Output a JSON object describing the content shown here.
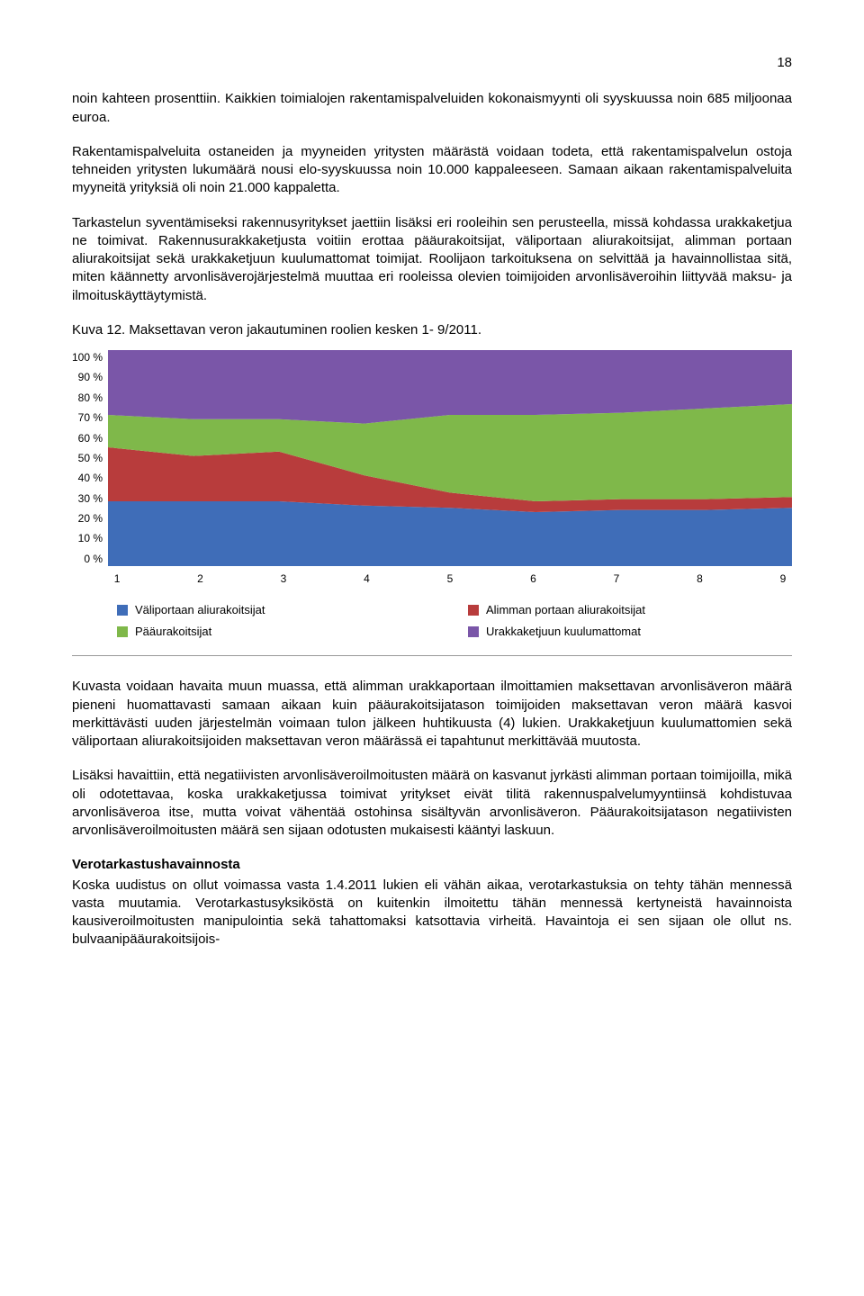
{
  "page_number": "18",
  "para1": "noin kahteen prosenttiin. Kaikkien toimialojen rakentamispalveluiden kokonaismyynti oli syyskuussa noin 685 miljoonaa euroa.",
  "para2": "Rakentamispalveluita ostaneiden ja myyneiden yritysten määrästä voidaan todeta, että rakentamispalvelun ostoja tehneiden yritysten lukumäärä nousi elo-syyskuussa noin 10.000 kappaleeseen. Samaan aikaan rakentamispalveluita myyneitä yrityksiä oli noin 21.000 kappaletta.",
  "para3": "Tarkastelun syventämiseksi rakennusyritykset jaettiin lisäksi eri rooleihin sen perusteella, missä kohdassa urakkaketjua ne toimivat. Rakennusurakkaketjusta voitiin erottaa pääurakoitsijat, väliportaan aliurakoitsijat, alimman portaan aliurakoitsijat sekä urakkaketjuun kuulumattomat toimijat. Roolijaon tarkoituksena on selvittää ja havainnollistaa sitä, miten käännetty arvonlisäverojärjestelmä muuttaa eri rooleissa olevien toimijoiden arvonlisäveroihin liittyvää maksu- ja ilmoituskäyttäytymistä.",
  "caption": "Kuva 12. Maksettavan veron jakautuminen roolien kesken 1- 9/2011.",
  "chart": {
    "type": "area-stacked",
    "ylim": [
      0,
      100
    ],
    "ytick_step": 10,
    "y_unit": "%",
    "x_labels": [
      "1",
      "2",
      "3",
      "4",
      "5",
      "6",
      "7",
      "8",
      "9"
    ],
    "series": [
      {
        "name": "Väliportaan aliurakoitsijat",
        "color": "#3f6db8",
        "values": [
          30,
          30,
          30,
          28,
          27,
          25,
          26,
          26,
          27
        ]
      },
      {
        "name": "Alimman portaan aliurakoitsijat",
        "color": "#b83c3c",
        "values": [
          25,
          21,
          23,
          14,
          7,
          5,
          5,
          5,
          5
        ]
      },
      {
        "name": "Pääurakoitsijat",
        "color": "#7fb84a",
        "values": [
          15,
          17,
          15,
          24,
          36,
          40,
          40,
          42,
          43
        ]
      },
      {
        "name": "Urakkaketjuun kuulumattomat",
        "color": "#7a56a8",
        "values": [
          30,
          32,
          32,
          34,
          30,
          30,
          29,
          27,
          25
        ]
      }
    ],
    "background_color": "#ffffff",
    "axis_font_size": 12
  },
  "para4": "Kuvasta voidaan havaita muun muassa, että alimman urakkaportaan ilmoittamien maksettavan arvonlisäveron määrä pieneni huomattavasti samaan aikaan kuin pääurakoitsijatason toimijoiden maksettavan veron määrä kasvoi merkittävästi uuden järjestelmän voimaan tulon jälkeen huhtikuusta (4) lukien. Urakkaketjuun kuulumattomien sekä väliportaan aliurakoitsijoiden maksettavan veron määrässä ei tapahtunut merkittävää muutosta.",
  "para5": "Lisäksi havaittiin, että negatiivisten arvonlisäveroilmoitusten määrä on kasvanut jyrkästi alimman portaan toimijoilla, mikä oli odotettavaa, koska urakkaketjussa toimivat yritykset eivät tilitä rakennuspalvelumyyntiinsä kohdistuvaa arvonlisäveroa itse, mutta voivat vähentää ostohinsa sisältyvän arvonlisäveron. Pääurakoitsijatason negatiivisten arvonlisäveroilmoitusten määrä sen sijaan odotusten mukaisesti kääntyi laskuun.",
  "subhead": "Verotarkastushavainnosta",
  "para6": "Koska uudistus on ollut voimassa vasta 1.4.2011 lukien eli vähän aikaa, verotarkastuksia on tehty tähän mennessä vasta muutamia. Verotarkastusyksiköstä on kuitenkin ilmoitettu tähän mennessä kertyneistä havainnoista kausiveroilmoitusten manipulointia sekä tahattomaksi katsottavia virheitä. Havaintoja ei sen sijaan ole ollut ns. bulvaanipääurakoitsijois-"
}
